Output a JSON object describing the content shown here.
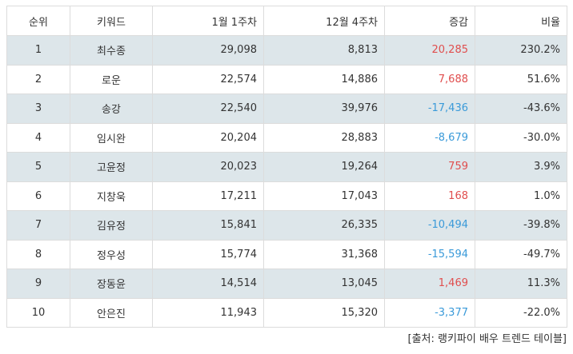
{
  "table": {
    "headers": {
      "rank": "순위",
      "keyword": "키워드",
      "week1": "1월 1주차",
      "week2": "12월 4주차",
      "change": "증감",
      "ratio": "비율"
    },
    "rows": [
      {
        "rank": "1",
        "keyword": "최수종",
        "week1": "29,098",
        "week2": "8,813",
        "change": "20,285",
        "ratio": "230.2%",
        "direction": "up"
      },
      {
        "rank": "2",
        "keyword": "로운",
        "week1": "22,574",
        "week2": "14,886",
        "change": "7,688",
        "ratio": "51.6%",
        "direction": "up"
      },
      {
        "rank": "3",
        "keyword": "송강",
        "week1": "22,540",
        "week2": "39,976",
        "change": "-17,436",
        "ratio": "-43.6%",
        "direction": "down"
      },
      {
        "rank": "4",
        "keyword": "임시완",
        "week1": "20,204",
        "week2": "28,883",
        "change": "-8,679",
        "ratio": "-30.0%",
        "direction": "down"
      },
      {
        "rank": "5",
        "keyword": "고윤정",
        "week1": "20,023",
        "week2": "19,264",
        "change": "759",
        "ratio": "3.9%",
        "direction": "up"
      },
      {
        "rank": "6",
        "keyword": "지창욱",
        "week1": "17,211",
        "week2": "17,043",
        "change": "168",
        "ratio": "1.0%",
        "direction": "up"
      },
      {
        "rank": "7",
        "keyword": "김유정",
        "week1": "15,841",
        "week2": "26,335",
        "change": "-10,494",
        "ratio": "-39.8%",
        "direction": "down"
      },
      {
        "rank": "8",
        "keyword": "정우성",
        "week1": "15,774",
        "week2": "31,368",
        "change": "-15,594",
        "ratio": "-49.7%",
        "direction": "down"
      },
      {
        "rank": "9",
        "keyword": "장동윤",
        "week1": "14,514",
        "week2": "13,045",
        "change": "1,469",
        "ratio": "11.3%",
        "direction": "up"
      },
      {
        "rank": "10",
        "keyword": "안은진",
        "week1": "11,943",
        "week2": "15,320",
        "change": "-3,377",
        "ratio": "-22.0%",
        "direction": "down"
      }
    ]
  },
  "source": "[출처: 랭키파이 배우 트렌드 테이블]",
  "colors": {
    "positive": "#e04e4e",
    "negative": "#3a9ad9",
    "shaded_row": "#dde6ea",
    "border": "#dcdcdc"
  }
}
